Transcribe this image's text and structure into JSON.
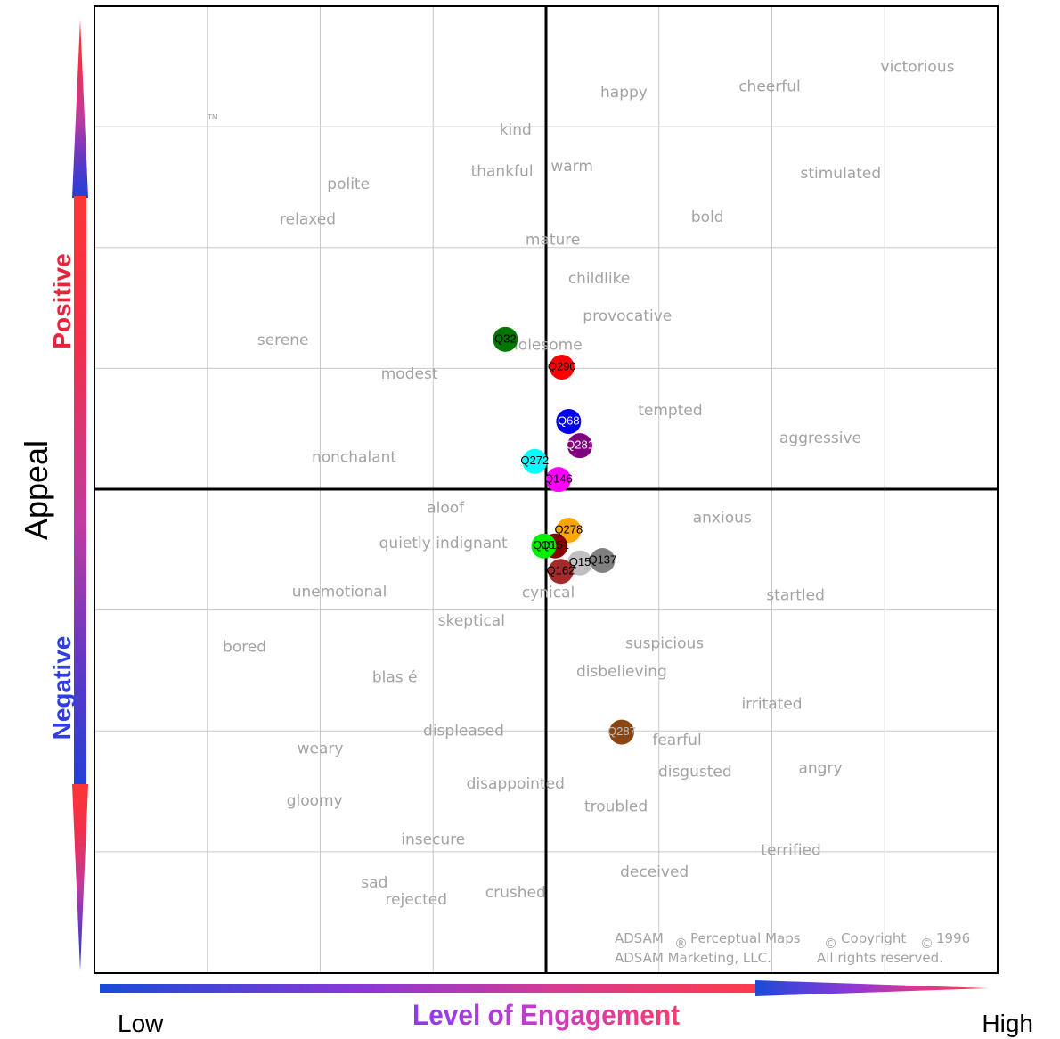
{
  "chart_data": {
    "type": "scatter",
    "title": "",
    "xlabel": "Level of Engagement",
    "ylabel": "Appeal",
    "x_low_label": "Low",
    "x_high_label": "High",
    "y_positive_label": "Positive",
    "y_negative_label": "Negative",
    "xlim": [
      -4,
      4
    ],
    "ylim": [
      -4,
      4
    ],
    "grid": true,
    "trademark": "TM",
    "credits": {
      "line1": "ADSAM",
      "reg_mark": "®",
      "line1b": "Perceptual Maps",
      "copy_mark1": "©",
      "line1c": "Copyright",
      "copy_mark2": "©",
      "year": "1996",
      "line2a": "ADSAM Marketing, LLC.",
      "line2b": "All rights reserved."
    },
    "words": [
      {
        "text": "victorious",
        "x": 3.29,
        "y": 3.49
      },
      {
        "text": "cheerful",
        "x": 1.98,
        "y": 3.33
      },
      {
        "text": "happy",
        "x": 0.69,
        "y": 3.28
      },
      {
        "text": "kind",
        "x": -0.27,
        "y": 2.97
      },
      {
        "text": "thankful",
        "x": -0.39,
        "y": 2.63
      },
      {
        "text": "warm",
        "x": 0.23,
        "y": 2.67
      },
      {
        "text": "stimulated",
        "x": 2.61,
        "y": 2.61
      },
      {
        "text": "polite",
        "x": -1.75,
        "y": 2.52
      },
      {
        "text": "relaxed",
        "x": -2.11,
        "y": 2.23
      },
      {
        "text": "bold",
        "x": 1.43,
        "y": 2.25
      },
      {
        "text": "mature",
        "x": 0.06,
        "y": 2.06
      },
      {
        "text": "childlike",
        "x": 0.47,
        "y": 1.74
      },
      {
        "text": "provocative",
        "x": 0.72,
        "y": 1.43
      },
      {
        "text": "serene",
        "x": -2.33,
        "y": 1.23
      },
      {
        "text": "wholesome",
        "x": -0.06,
        "y": 1.19
      },
      {
        "text": "modest",
        "x": -1.21,
        "y": 0.95
      },
      {
        "text": "tempted",
        "x": 1.1,
        "y": 0.65
      },
      {
        "text": "aggressive",
        "x": 2.43,
        "y": 0.42
      },
      {
        "text": "nonchalant",
        "x": -1.7,
        "y": 0.26
      },
      {
        "text": "aloof",
        "x": -0.89,
        "y": -0.16
      },
      {
        "text": "anxious",
        "x": 1.56,
        "y": -0.24
      },
      {
        "text": "quietly indignant",
        "x": -0.91,
        "y": -0.45
      },
      {
        "text": "unemotional",
        "x": -1.83,
        "y": -0.85
      },
      {
        "text": "cynical",
        "x": 0.02,
        "y": -0.86
      },
      {
        "text": "startled",
        "x": 2.21,
        "y": -0.88
      },
      {
        "text": "skeptical",
        "x": -0.66,
        "y": -1.09
      },
      {
        "text": "suspicious",
        "x": 1.05,
        "y": -1.28
      },
      {
        "text": "bored",
        "x": -2.67,
        "y": -1.31
      },
      {
        "text": "disbelieving",
        "x": 0.67,
        "y": -1.51
      },
      {
        "text": "blas é",
        "x": -1.34,
        "y": -1.56
      },
      {
        "text": "irritated",
        "x": 2.0,
        "y": -1.78
      },
      {
        "text": "displeased",
        "x": -0.73,
        "y": -2.0
      },
      {
        "text": "fearful",
        "x": 1.16,
        "y": -2.08
      },
      {
        "text": "weary",
        "x": -2.0,
        "y": -2.15
      },
      {
        "text": "angry",
        "x": 2.43,
        "y": -2.31
      },
      {
        "text": "disgusted",
        "x": 1.32,
        "y": -2.34
      },
      {
        "text": "disappointed",
        "x": -0.27,
        "y": -2.44
      },
      {
        "text": "gloomy",
        "x": -2.05,
        "y": -2.58
      },
      {
        "text": "troubled",
        "x": 0.62,
        "y": -2.63
      },
      {
        "text": "insecure",
        "x": -1.0,
        "y": -2.9
      },
      {
        "text": "terrified",
        "x": 2.17,
        "y": -2.99
      },
      {
        "text": "deceived",
        "x": 0.96,
        "y": -3.17
      },
      {
        "text": "sad",
        "x": -1.52,
        "y": -3.26
      },
      {
        "text": "crushed",
        "x": -0.27,
        "y": -3.34
      },
      {
        "text": "rejected",
        "x": -1.15,
        "y": -3.4
      }
    ],
    "series": [
      {
        "name": "Q32",
        "x": -0.36,
        "y": 1.24,
        "color": "#007800",
        "label_color": "#000000"
      },
      {
        "name": "Q290",
        "x": 0.14,
        "y": 1.01,
        "color": "#ff0000",
        "label_color": "#000000"
      },
      {
        "name": "Q68",
        "x": 0.2,
        "y": 0.56,
        "color": "#0000ee",
        "label_color": "#ffffff"
      },
      {
        "name": "Q281",
        "x": 0.3,
        "y": 0.36,
        "color": "#800080",
        "label_color": "#ffffff"
      },
      {
        "name": "Q272",
        "x": -0.1,
        "y": 0.23,
        "color": "#00ffff",
        "label_color": "#000000"
      },
      {
        "name": "Q146",
        "x": 0.11,
        "y": 0.08,
        "color": "#ff00ff",
        "label_color": "#000000"
      },
      {
        "name": "Q278",
        "x": 0.2,
        "y": -0.34,
        "color": "#ffa500",
        "label_color": "#000000"
      },
      {
        "name": "Q151",
        "x": 0.08,
        "y": -0.47,
        "color": "#8b0000",
        "label_color": "#000000"
      },
      {
        "name": "Q15",
        "x": -0.02,
        "y": -0.47,
        "color": "#00ee00",
        "label_color": "#000000"
      },
      {
        "name": "Q15",
        "x": 0.3,
        "y": -0.61,
        "color": "#c0c0c0",
        "label_color": "#000000"
      },
      {
        "name": "Q137",
        "x": 0.5,
        "y": -0.59,
        "color": "#808080",
        "label_color": "#000000"
      },
      {
        "name": "Q162",
        "x": 0.13,
        "y": -0.68,
        "color": "#a52a2a",
        "label_color": "#000000"
      },
      {
        "name": "Q287",
        "x": 0.67,
        "y": -2.01,
        "color": "#8b4513",
        "label_color": "#c0c0c0"
      }
    ]
  }
}
